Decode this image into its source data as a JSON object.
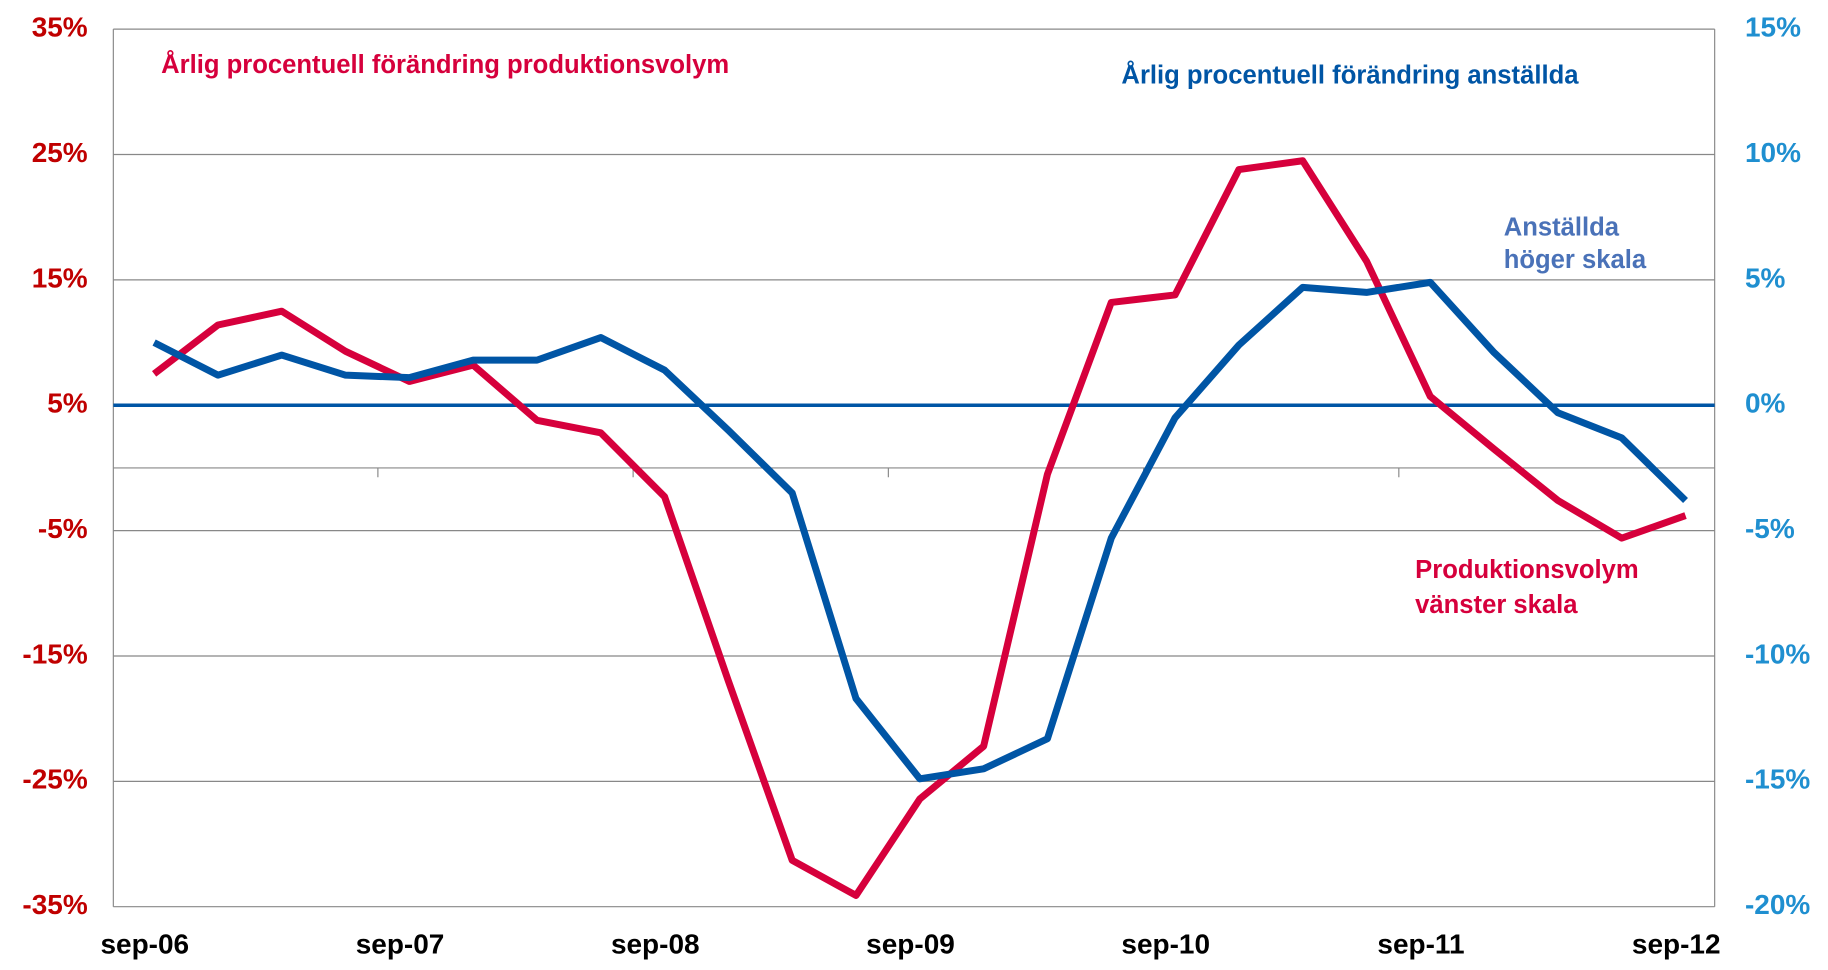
{
  "chart_data": {
    "type": "line",
    "categories": [
      "sep-06",
      null,
      null,
      null,
      "sep-07",
      null,
      null,
      null,
      "sep-08",
      null,
      null,
      null,
      "sep-09",
      null,
      null,
      null,
      "sep-10",
      null,
      null,
      null,
      "sep-11",
      null,
      null,
      null,
      "sep-12"
    ],
    "series": [
      {
        "name": "Årlig procentuell förändring produktionsvolym",
        "color": "#d6003c",
        "axis": "y",
        "values": [
          7.5,
          11.4,
          12.5,
          9.3,
          6.9,
          8.2,
          3.8,
          2.8,
          -2.3,
          -17.0,
          -31.3,
          -34.1,
          -26.4,
          -22.2,
          -0.5,
          13.2,
          13.8,
          23.8,
          24.5,
          16.5,
          5.7,
          1.5,
          -2.6,
          -5.6,
          -3.8
        ]
      },
      {
        "name": "Årlig procentuell förändring anställda",
        "color": "#0055a5",
        "axis": "y2",
        "values": [
          2.5,
          1.2,
          2.0,
          1.2,
          1.1,
          1.8,
          1.8,
          2.7,
          1.4,
          -1.0,
          -3.5,
          -11.7,
          -14.9,
          -14.5,
          -13.3,
          -5.3,
          -0.5,
          2.4,
          4.7,
          4.5,
          4.9,
          2.1,
          -0.3,
          -1.3,
          -3.8
        ]
      }
    ],
    "ylim": [
      -35,
      35
    ],
    "yticks": [
      {
        "value": -35,
        "label": "-35%"
      },
      {
        "value": -25,
        "label": "-25%"
      },
      {
        "value": -15,
        "label": "-15%"
      },
      {
        "value": -5,
        "label": "-5%"
      },
      {
        "value": 5,
        "label": "5%"
      },
      {
        "value": 15,
        "label": "15%"
      },
      {
        "value": 25,
        "label": "25%"
      },
      {
        "value": 35,
        "label": "35%"
      }
    ],
    "y2lim": [
      -20,
      15
    ],
    "y2ticks": [
      {
        "value": -20,
        "label": "-20%"
      },
      {
        "value": -15,
        "label": "-15%"
      },
      {
        "value": -10,
        "label": "-10%"
      },
      {
        "value": -5,
        "label": "-5%"
      },
      {
        "value": 0,
        "label": "0%"
      },
      {
        "value": 5,
        "label": "5%"
      },
      {
        "value": 10,
        "label": "10%"
      },
      {
        "value": 15,
        "label": "15%"
      }
    ],
    "grid": true,
    "annotations": [
      "Anställda höger skala",
      "Produktionsvolym vänster skala"
    ],
    "annotation_colors": [
      "#4a72b8",
      "#d6003c"
    ],
    "ytick_color": "#c00000",
    "y2tick_color": "#1f8fd0",
    "zero_line_color": "#0055a5"
  }
}
